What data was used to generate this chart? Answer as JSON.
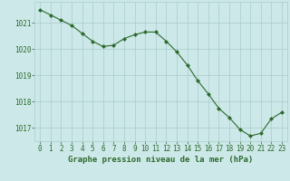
{
  "hours": [
    0,
    1,
    2,
    3,
    4,
    5,
    6,
    7,
    8,
    9,
    10,
    11,
    12,
    13,
    14,
    15,
    16,
    17,
    18,
    19,
    20,
    21,
    22,
    23
  ],
  "pressure": [
    1021.5,
    1021.3,
    1021.1,
    1020.9,
    1020.6,
    1020.3,
    1020.1,
    1020.15,
    1020.4,
    1020.55,
    1020.65,
    1020.65,
    1020.3,
    1019.9,
    1019.4,
    1018.8,
    1018.3,
    1017.75,
    1017.4,
    1016.95,
    1016.7,
    1016.8,
    1017.35,
    1017.6
  ],
  "line_color": "#2d6a2d",
  "marker": "D",
  "marker_size": 2.0,
  "bg_color": "#cce8e8",
  "grid_color": "#aacccc",
  "title": "Graphe pression niveau de la mer (hPa)",
  "ylim": [
    1016.5,
    1021.8
  ],
  "yticks": [
    1017,
    1018,
    1019,
    1020,
    1021
  ],
  "tick_fontsize": 5.5,
  "title_fontsize": 6.5
}
